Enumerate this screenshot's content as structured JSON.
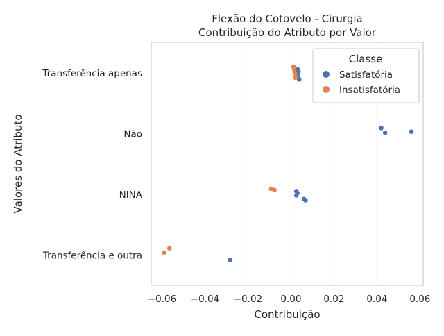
{
  "chart_data": {
    "type": "scatter",
    "title_lines": [
      "Flexão do Cotovelo - Cirurgia",
      "Contribuição do Atributo por Valor"
    ],
    "xlabel": "Contribuição",
    "ylabel": "Valores do Atributo",
    "xlim": [
      -0.065,
      0.0615
    ],
    "x_ticks": [
      -0.06,
      -0.04,
      -0.02,
      0.0,
      0.02,
      0.04,
      0.06
    ],
    "x_tick_labels": [
      "−0.06",
      "−0.04",
      "−0.02",
      "0.00",
      "0.02",
      "0.04",
      "0.06"
    ],
    "categories": [
      "Transferência apenas",
      "Não",
      "NINA",
      "Transferência e outra"
    ],
    "grid": "vertical",
    "legend": {
      "title": "Classe",
      "placement": "top-right",
      "entries": [
        "Satisfatória",
        "Insatisfatória"
      ]
    },
    "colors": {
      "Satisfatória": "#4c72b0",
      "Insatisfatória": "#dd8452"
    },
    "series": [
      {
        "name": "Satisfatória",
        "points": [
          {
            "category": "Transferência apenas",
            "x": 0.003,
            "jitter": -0.06
          },
          {
            "category": "Transferência apenas",
            "x": 0.0035,
            "jitter": -0.02
          },
          {
            "category": "Transferência apenas",
            "x": 0.0025,
            "jitter": 0.0
          },
          {
            "category": "Transferência apenas",
            "x": 0.003,
            "jitter": 0.04
          },
          {
            "category": "Transferência apenas",
            "x": 0.0033,
            "jitter": 0.08
          },
          {
            "category": "Transferência apenas",
            "x": 0.0038,
            "jitter": 0.11
          },
          {
            "category": "Não",
            "x": 0.042,
            "jitter": -0.09
          },
          {
            "category": "Não",
            "x": 0.056,
            "jitter": -0.03
          },
          {
            "category": "Não",
            "x": 0.0438,
            "jitter": -0.01
          },
          {
            "category": "NINA",
            "x": 0.0025,
            "jitter": -0.05
          },
          {
            "category": "NINA",
            "x": 0.003,
            "jitter": -0.02
          },
          {
            "category": "NINA",
            "x": 0.0025,
            "jitter": 0.02
          },
          {
            "category": "NINA",
            "x": 0.006,
            "jitter": 0.08
          },
          {
            "category": "NINA",
            "x": 0.0068,
            "jitter": 0.1
          },
          {
            "category": "Transferência e outra",
            "x": -0.0283,
            "jitter": 0.08
          }
        ]
      },
      {
        "name": "Insatisfatória",
        "points": [
          {
            "category": "Transferência apenas",
            "x": 0.0012,
            "jitter": -0.1
          },
          {
            "category": "Transferência apenas",
            "x": 0.0015,
            "jitter": -0.05
          },
          {
            "category": "Transferência apenas",
            "x": 0.0018,
            "jitter": 0.0
          },
          {
            "category": "Transferência apenas",
            "x": 0.0022,
            "jitter": 0.06
          },
          {
            "category": "Transferência apenas",
            "x": 0.002,
            "jitter": 0.08
          },
          {
            "category": "NINA",
            "x": -0.0092,
            "jitter": -0.09
          },
          {
            "category": "NINA",
            "x": -0.0077,
            "jitter": -0.07
          },
          {
            "category": "Transferência e outra",
            "x": -0.0565,
            "jitter": -0.11
          },
          {
            "category": "Transferência e outra",
            "x": -0.059,
            "jitter": -0.04
          }
        ]
      }
    ]
  }
}
